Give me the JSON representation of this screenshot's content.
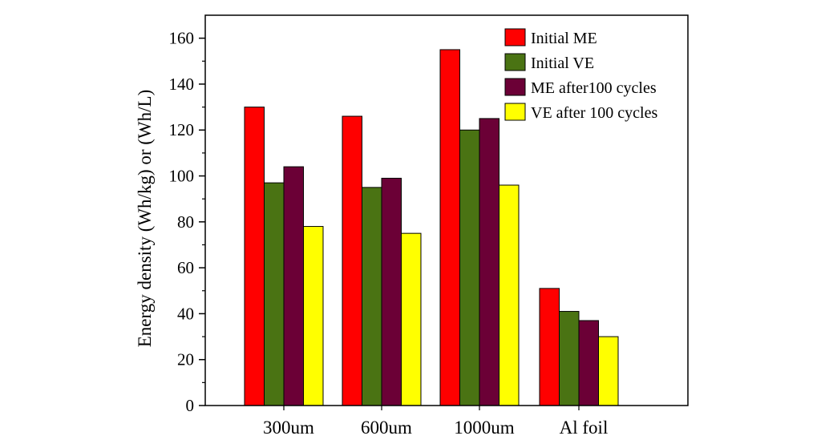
{
  "chart_data": {
    "type": "bar",
    "title": "",
    "xlabel": "",
    "ylabel": "Energy density (Wh/kg) or (Wh/L)",
    "categories": [
      "300um",
      "600um",
      "1000um",
      "Al foil"
    ],
    "series": [
      {
        "name": "Initial ME",
        "values": [
          130,
          126,
          155,
          51
        ],
        "color": "#ff0000"
      },
      {
        "name": "Initial VE",
        "values": [
          97,
          95,
          120,
          41
        ],
        "color": "#4a7313"
      },
      {
        "name": "ME after100 cycles",
        "values": [
          104,
          99,
          125,
          37
        ],
        "color": "#6b0036"
      },
      {
        "name": "VE after 100 cycles",
        "values": [
          78,
          75,
          96,
          30
        ],
        "color": "#ffff00"
      }
    ],
    "ylim": [
      0,
      170
    ],
    "yticks": [
      0,
      20,
      40,
      60,
      80,
      100,
      120,
      140,
      160
    ],
    "grid": false,
    "legend": "top-right"
  }
}
